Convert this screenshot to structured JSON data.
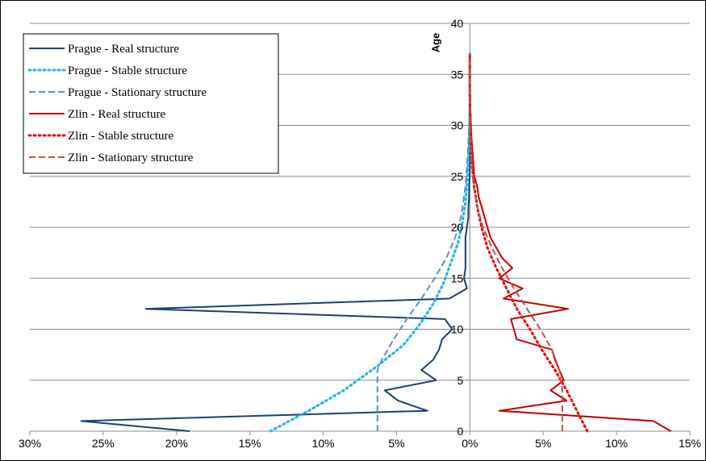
{
  "chart_data": {
    "type": "line",
    "title": "",
    "xlabel": "",
    "ylabel": "Age",
    "xlim": [
      -30,
      15
    ],
    "ylim": [
      0,
      40
    ],
    "x_ticks": [
      {
        "value": -30,
        "label": "30%"
      },
      {
        "value": -25,
        "label": "25%"
      },
      {
        "value": -20,
        "label": "20%"
      },
      {
        "value": -15,
        "label": "15%"
      },
      {
        "value": -10,
        "label": "10%"
      },
      {
        "value": -5,
        "label": "5%"
      },
      {
        "value": 0,
        "label": "0%"
      },
      {
        "value": 5,
        "label": "5%"
      },
      {
        "value": 10,
        "label": "10%"
      },
      {
        "value": 15,
        "label": "15%"
      }
    ],
    "y_ticks": [
      {
        "value": 0,
        "label": "0"
      },
      {
        "value": 5,
        "label": "5"
      },
      {
        "value": 10,
        "label": "10"
      },
      {
        "value": 15,
        "label": "15"
      },
      {
        "value": 20,
        "label": "20"
      },
      {
        "value": 25,
        "label": "25"
      },
      {
        "value": 30,
        "label": "30"
      },
      {
        "value": 35,
        "label": "35"
      },
      {
        "value": 40,
        "label": "40"
      }
    ],
    "grid": "horizontal",
    "legend_position": "top-left",
    "series": [
      {
        "name": "Prague - Real structure",
        "color": "#1f3f6e",
        "style": "solid",
        "points": [
          [
            -19.1,
            0
          ],
          [
            -26.5,
            1
          ],
          [
            -2.9,
            2
          ],
          [
            -4.9,
            3
          ],
          [
            -5.8,
            4
          ],
          [
            -2.3,
            5
          ],
          [
            -3.3,
            6
          ],
          [
            -2.5,
            7
          ],
          [
            -2.1,
            8
          ],
          [
            -1.9,
            9
          ],
          [
            -1.2,
            10
          ],
          [
            -1.7,
            11
          ],
          [
            -22.1,
            12
          ],
          [
            -1.4,
            13
          ],
          [
            -0.2,
            14
          ],
          [
            -0.4,
            15
          ],
          [
            -0.3,
            16
          ],
          [
            -0.3,
            17
          ],
          [
            -0.3,
            18
          ],
          [
            -0.3,
            19
          ],
          [
            -0.2,
            20
          ],
          [
            -0.1,
            21
          ],
          [
            -0.1,
            22
          ],
          [
            -0.05,
            23
          ],
          [
            -0.05,
            24
          ],
          [
            0,
            25
          ],
          [
            0,
            30
          ],
          [
            0,
            35
          ],
          [
            0,
            37
          ]
        ]
      },
      {
        "name": "Prague - Stable structure",
        "color": "#1fb4e6",
        "style": "dotted",
        "points": [
          [
            -13.6,
            0
          ],
          [
            -11.0,
            2
          ],
          [
            -8.6,
            4
          ],
          [
            -6.2,
            6.5
          ],
          [
            -4.5,
            8.5
          ],
          [
            -3.4,
            10.5
          ],
          [
            -2.5,
            12.5
          ],
          [
            -1.8,
            14.5
          ],
          [
            -1.3,
            16.5
          ],
          [
            -0.8,
            18.5
          ],
          [
            -0.5,
            20.5
          ],
          [
            -0.3,
            22.5
          ],
          [
            -0.15,
            25
          ],
          [
            -0.05,
            28
          ],
          [
            0,
            32
          ],
          [
            0,
            37
          ]
        ]
      },
      {
        "name": "Prague - Stationary structure",
        "color": "#5b8fd1",
        "style": "dashed",
        "points": [
          [
            -6.3,
            0
          ],
          [
            -6.3,
            2
          ],
          [
            -6.3,
            4
          ],
          [
            -6.3,
            6
          ],
          [
            -6.0,
            7
          ],
          [
            -5.2,
            9
          ],
          [
            -4.3,
            11
          ],
          [
            -3.3,
            13
          ],
          [
            -2.4,
            15
          ],
          [
            -1.6,
            17
          ],
          [
            -1.0,
            19
          ],
          [
            -0.6,
            21
          ],
          [
            -0.3,
            24
          ],
          [
            -0.15,
            27
          ],
          [
            -0.05,
            30
          ],
          [
            0,
            34
          ],
          [
            0,
            37
          ]
        ]
      },
      {
        "name": "Zlin - Real structure",
        "color": "#c00000",
        "style": "solid",
        "points": [
          [
            13.7,
            0
          ],
          [
            12.5,
            1
          ],
          [
            2.0,
            2
          ],
          [
            6.6,
            3
          ],
          [
            5.5,
            4
          ],
          [
            6.4,
            5
          ],
          [
            6.1,
            6
          ],
          [
            5.8,
            7
          ],
          [
            5.6,
            8
          ],
          [
            3.2,
            9
          ],
          [
            3.0,
            10
          ],
          [
            2.8,
            11
          ],
          [
            6.7,
            12
          ],
          [
            2.3,
            13
          ],
          [
            3.6,
            14
          ],
          [
            2.0,
            15
          ],
          [
            2.9,
            16
          ],
          [
            2.2,
            17
          ],
          [
            1.8,
            18
          ],
          [
            1.4,
            19
          ],
          [
            1.2,
            20
          ],
          [
            1.0,
            21
          ],
          [
            0.8,
            22
          ],
          [
            0.6,
            23
          ],
          [
            0.5,
            24
          ],
          [
            0.3,
            25
          ],
          [
            0.2,
            27
          ],
          [
            0.1,
            29
          ],
          [
            0.05,
            31
          ],
          [
            0,
            34
          ],
          [
            0,
            37
          ]
        ]
      },
      {
        "name": "Zlin - Stable structure",
        "color": "#e01010",
        "style": "dotted",
        "points": [
          [
            8.0,
            0
          ],
          [
            7.3,
            2
          ],
          [
            6.6,
            4
          ],
          [
            5.8,
            6
          ],
          [
            4.9,
            8
          ],
          [
            4.1,
            10
          ],
          [
            3.2,
            12
          ],
          [
            2.5,
            14
          ],
          [
            1.8,
            16
          ],
          [
            1.2,
            18
          ],
          [
            0.8,
            20
          ],
          [
            0.5,
            22
          ],
          [
            0.3,
            24
          ],
          [
            0.15,
            26
          ],
          [
            0.05,
            29
          ],
          [
            0,
            33
          ],
          [
            0,
            37
          ]
        ]
      },
      {
        "name": "Zlin - Stationary structure",
        "color": "#c0504d",
        "style": "dashed",
        "points": [
          [
            6.3,
            0
          ],
          [
            6.3,
            2
          ],
          [
            6.3,
            4
          ],
          [
            6.1,
            6
          ],
          [
            5.6,
            8
          ],
          [
            4.8,
            10
          ],
          [
            3.9,
            12
          ],
          [
            3.0,
            14
          ],
          [
            2.2,
            16
          ],
          [
            1.5,
            18
          ],
          [
            0.9,
            20
          ],
          [
            0.5,
            22
          ],
          [
            0.25,
            24
          ],
          [
            0.1,
            27
          ],
          [
            0.03,
            30
          ],
          [
            0,
            34
          ],
          [
            0,
            37
          ]
        ]
      }
    ]
  }
}
